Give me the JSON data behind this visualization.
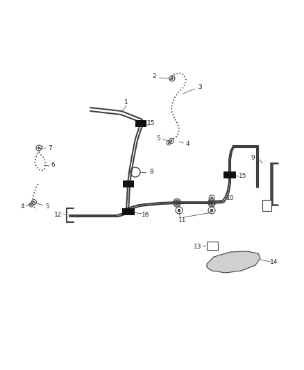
{
  "bg_color": "#ffffff",
  "line_color": "#404040",
  "clip_color": "#111111",
  "leader_color": "#555555",
  "figsize": [
    4.38,
    5.33
  ],
  "dpi": 100,
  "xlim": [
    0,
    438
  ],
  "ylim": [
    0,
    533
  ]
}
